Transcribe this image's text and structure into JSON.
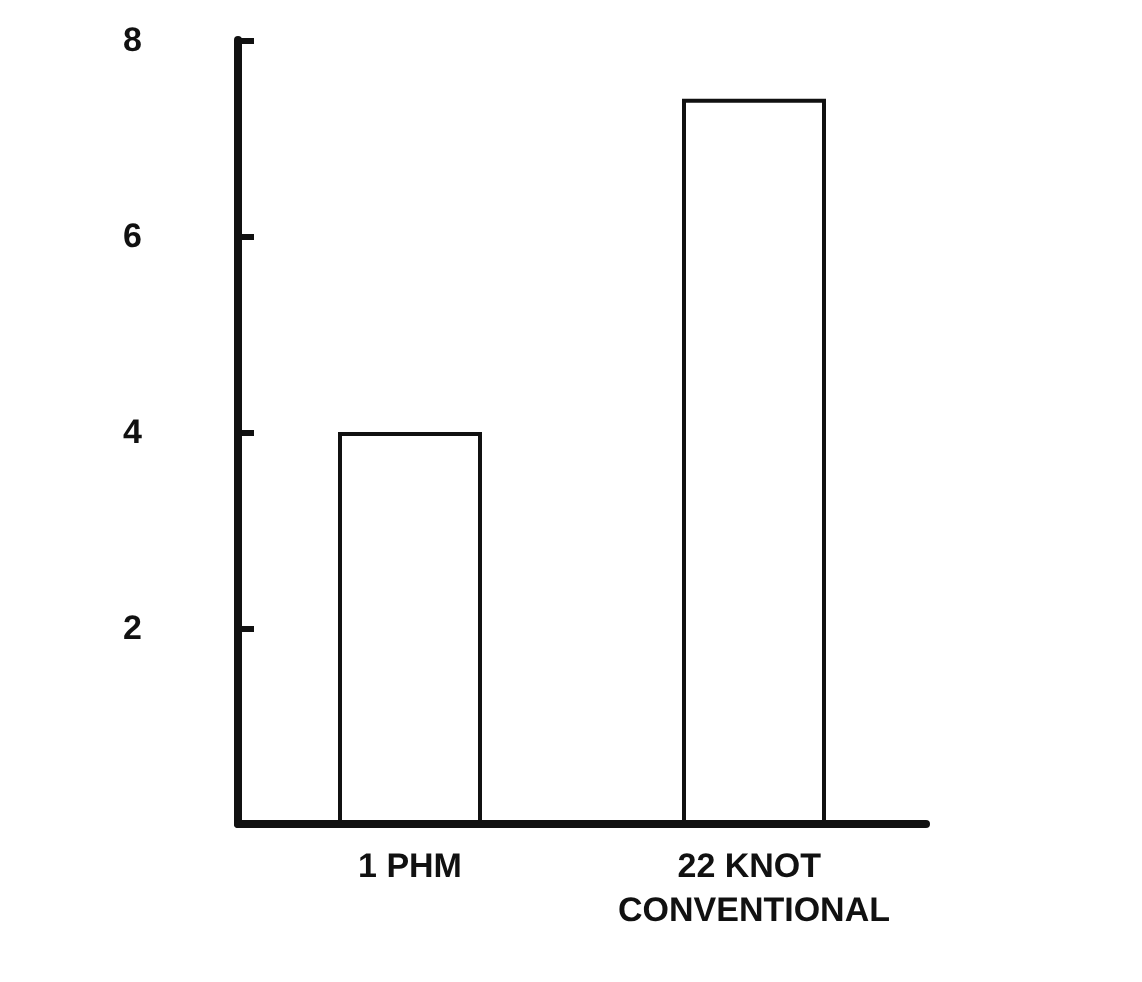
{
  "chart_data": {
    "type": "bar",
    "categories": [
      "1 PHM",
      "22 KNOT CONVENTIONAL"
    ],
    "values": [
      4,
      7.4
    ],
    "color": "#ffffff",
    "ylim": [
      0,
      8
    ],
    "yticks": [
      2,
      4,
      6,
      8
    ],
    "grid": false
  }
}
